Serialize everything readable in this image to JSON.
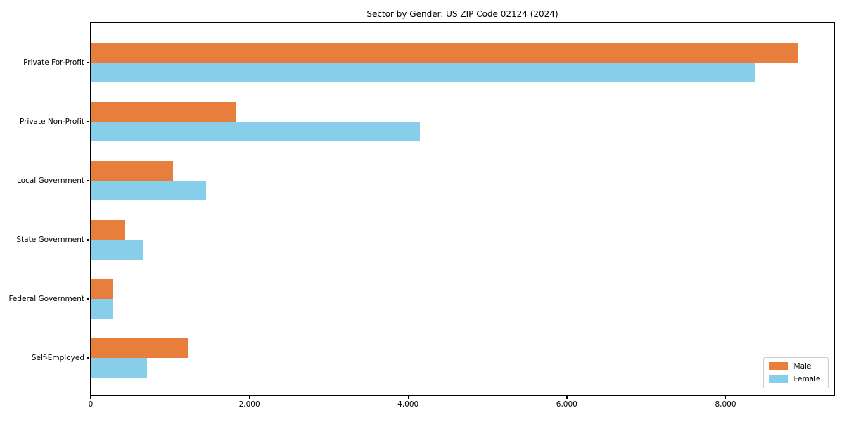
{
  "figure": {
    "background": "#ffffff",
    "spine_color": "#000000",
    "text_color": "#000000"
  },
  "chart_data": {
    "type": "bar",
    "orientation": "horizontal",
    "title": "Sector by Gender: US ZIP Code 02124 (2024)",
    "xlabel": "",
    "ylabel": "",
    "grid": false,
    "categories": [
      "Private For-Profit",
      "Private Non-Profit",
      "Local Government",
      "State Government",
      "Federal Government",
      "Self-Employed"
    ],
    "series": [
      {
        "name": "Male",
        "color": "#e87e3b",
        "values": [
          8920,
          1830,
          1040,
          440,
          280,
          1240
        ]
      },
      {
        "name": "Female",
        "color": "#87ceeb",
        "values": [
          8380,
          4150,
          1460,
          660,
          290,
          715
        ]
      }
    ],
    "xlim": [
      0,
      9370
    ],
    "xticks": [
      0,
      2000,
      4000,
      6000,
      8000
    ],
    "xtick_labels": [
      "0",
      "2,000",
      "4,000",
      "6,000",
      "8,000"
    ],
    "legend": {
      "position": "lower right"
    }
  }
}
